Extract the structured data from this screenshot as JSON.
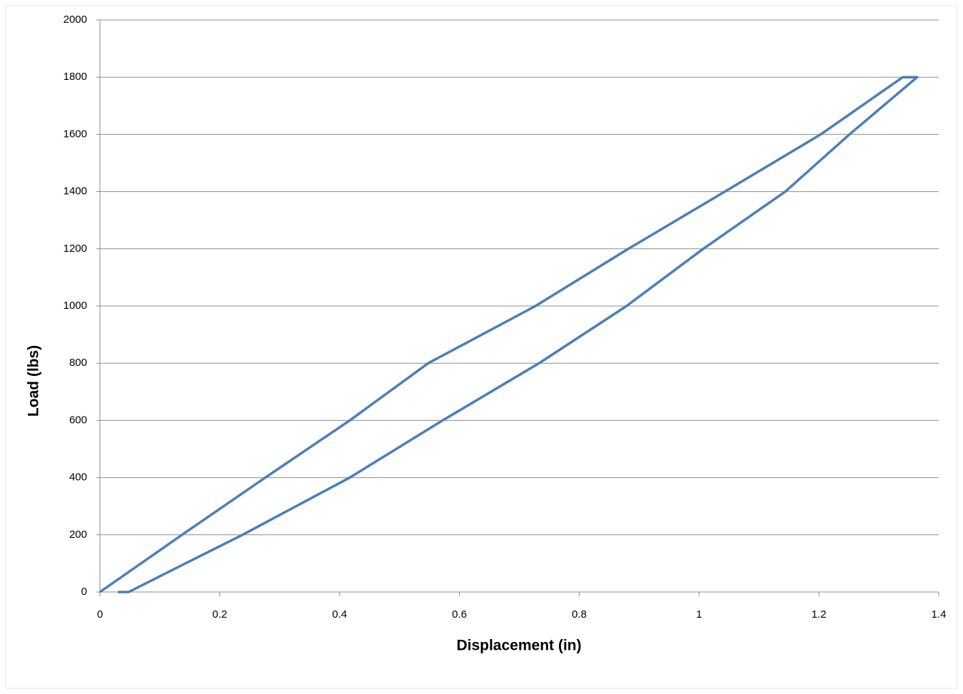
{
  "chart_data": {
    "type": "line",
    "x_label": "Displacement  (in)",
    "y_label": "Load  (lbs)",
    "x": [
      0,
      0.137,
      0.276,
      0.417,
      0.548,
      0.727,
      0.882,
      1.043,
      1.203,
      1.34,
      1.364,
      1.251,
      1.144,
      1.007,
      0.879,
      0.733,
      0.572,
      0.417,
      0.238,
      0.1,
      0.048,
      0.03
    ],
    "series": [
      {
        "color": "#4a7ebb",
        "values": [
          0,
          200,
          400,
          600,
          800,
          1000,
          1200,
          1400,
          1600,
          1800,
          1800,
          1600,
          1400,
          1200,
          1000,
          800,
          600,
          400,
          200,
          55,
          0,
          0
        ]
      }
    ],
    "xlim": [
      0,
      1.4
    ],
    "xticks": [
      0,
      0.2,
      0.4,
      0.6,
      0.8,
      1,
      1.2,
      1.4
    ],
    "ylim": [
      0,
      2000
    ],
    "yticks": [
      0,
      200,
      400,
      600,
      800,
      1000,
      1200,
      1400,
      1600,
      1800,
      2000
    ],
    "grid": true
  }
}
